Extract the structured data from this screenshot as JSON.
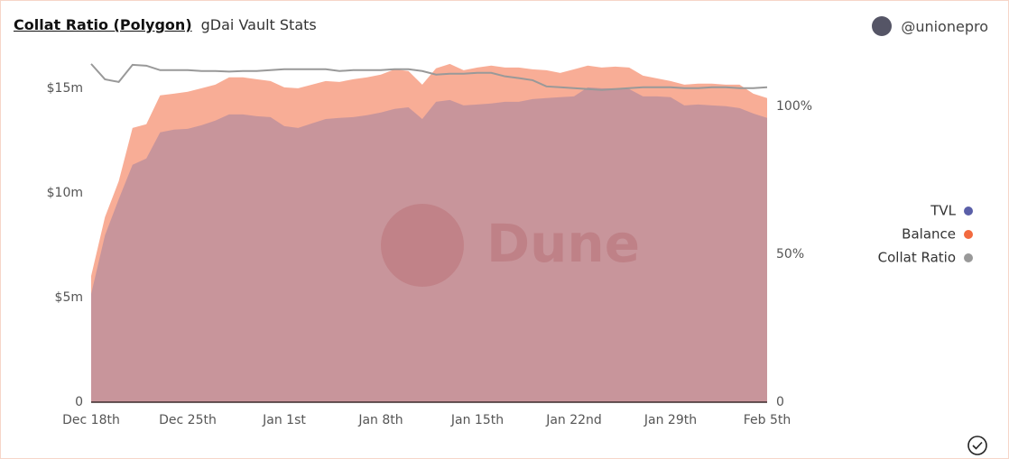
{
  "header": {
    "title": "Collat Ratio (Polygon)",
    "subtitle": "gDai Vault Stats",
    "user": "@unionepro"
  },
  "chart_data": {
    "type": "area",
    "watermark": "Dune",
    "categories": [
      "Dec 18th",
      null,
      null,
      null,
      null,
      null,
      null,
      "Dec 25th",
      null,
      null,
      null,
      null,
      null,
      null,
      "Jan 1st",
      null,
      null,
      null,
      null,
      null,
      null,
      "Jan 8th",
      null,
      null,
      null,
      null,
      null,
      null,
      "Jan 15th",
      null,
      null,
      null,
      null,
      null,
      null,
      "Jan 22nd",
      null,
      null,
      null,
      null,
      null,
      null,
      "Jan 29th",
      null,
      null,
      null,
      null,
      null,
      null,
      "Feb 5th"
    ],
    "series": [
      {
        "name": "TVL",
        "color": "#5a5fa8",
        "type": "area",
        "values": [
          5.17,
          7.97,
          9.7,
          11.34,
          11.64,
          12.89,
          13.02,
          13.06,
          13.23,
          13.45,
          13.75,
          13.75,
          13.66,
          13.62,
          13.19,
          13.1,
          13.32,
          13.53,
          13.58,
          13.62,
          13.71,
          13.84,
          14.01,
          14.09,
          13.53,
          14.35,
          14.44,
          14.18,
          14.22,
          14.27,
          14.35,
          14.35,
          14.48,
          14.53,
          14.57,
          14.61,
          15.04,
          15.0,
          15.0,
          14.96,
          14.61,
          14.61,
          14.57,
          14.18,
          14.22,
          14.18,
          14.14,
          14.05,
          13.79,
          13.58
        ]
      },
      {
        "name": "Balance",
        "color": "#f26a3f",
        "type": "area",
        "values": [
          6.03,
          8.84,
          10.56,
          13.1,
          13.28,
          14.66,
          14.74,
          14.83,
          15.0,
          15.17,
          15.52,
          15.52,
          15.43,
          15.34,
          15.04,
          15.0,
          15.17,
          15.34,
          15.3,
          15.43,
          15.52,
          15.65,
          15.9,
          15.82,
          15.17,
          15.95,
          16.16,
          15.86,
          15.99,
          16.08,
          15.99,
          15.99,
          15.9,
          15.86,
          15.73,
          15.9,
          16.08,
          15.99,
          16.03,
          15.99,
          15.6,
          15.47,
          15.34,
          15.17,
          15.22,
          15.22,
          15.17,
          15.17,
          14.74,
          14.53
        ]
      },
      {
        "name": "Collat Ratio",
        "color": "#999999",
        "type": "line",
        "axis": "y2",
        "values": [
          114.3,
          109.1,
          108.2,
          114.0,
          113.7,
          112.2,
          112.2,
          112.2,
          111.9,
          111.9,
          111.7,
          111.9,
          111.9,
          112.2,
          112.5,
          112.5,
          112.5,
          112.5,
          111.9,
          112.2,
          112.2,
          112.2,
          112.5,
          112.5,
          111.9,
          110.7,
          111.0,
          111.0,
          111.3,
          111.3,
          110.1,
          109.5,
          108.8,
          106.7,
          106.4,
          106.1,
          105.8,
          105.5,
          105.8,
          106.1,
          106.4,
          106.4,
          106.4,
          106.1,
          106.1,
          106.4,
          106.4,
          106.1,
          106.1,
          106.4
        ]
      }
    ],
    "ylim": [
      0,
      16.5
    ],
    "yticks": [
      0,
      {
        "value": 5,
        "label": "$5m"
      },
      {
        "value": 10,
        "label": "$10m"
      },
      {
        "value": 15,
        "label": "$15m"
      }
    ],
    "y2lim": [
      0,
      116.7
    ],
    "y2ticks": [
      0,
      {
        "value": 50,
        "label": "50%"
      },
      {
        "value": 100,
        "label": "100%"
      }
    ],
    "legend": "right"
  }
}
